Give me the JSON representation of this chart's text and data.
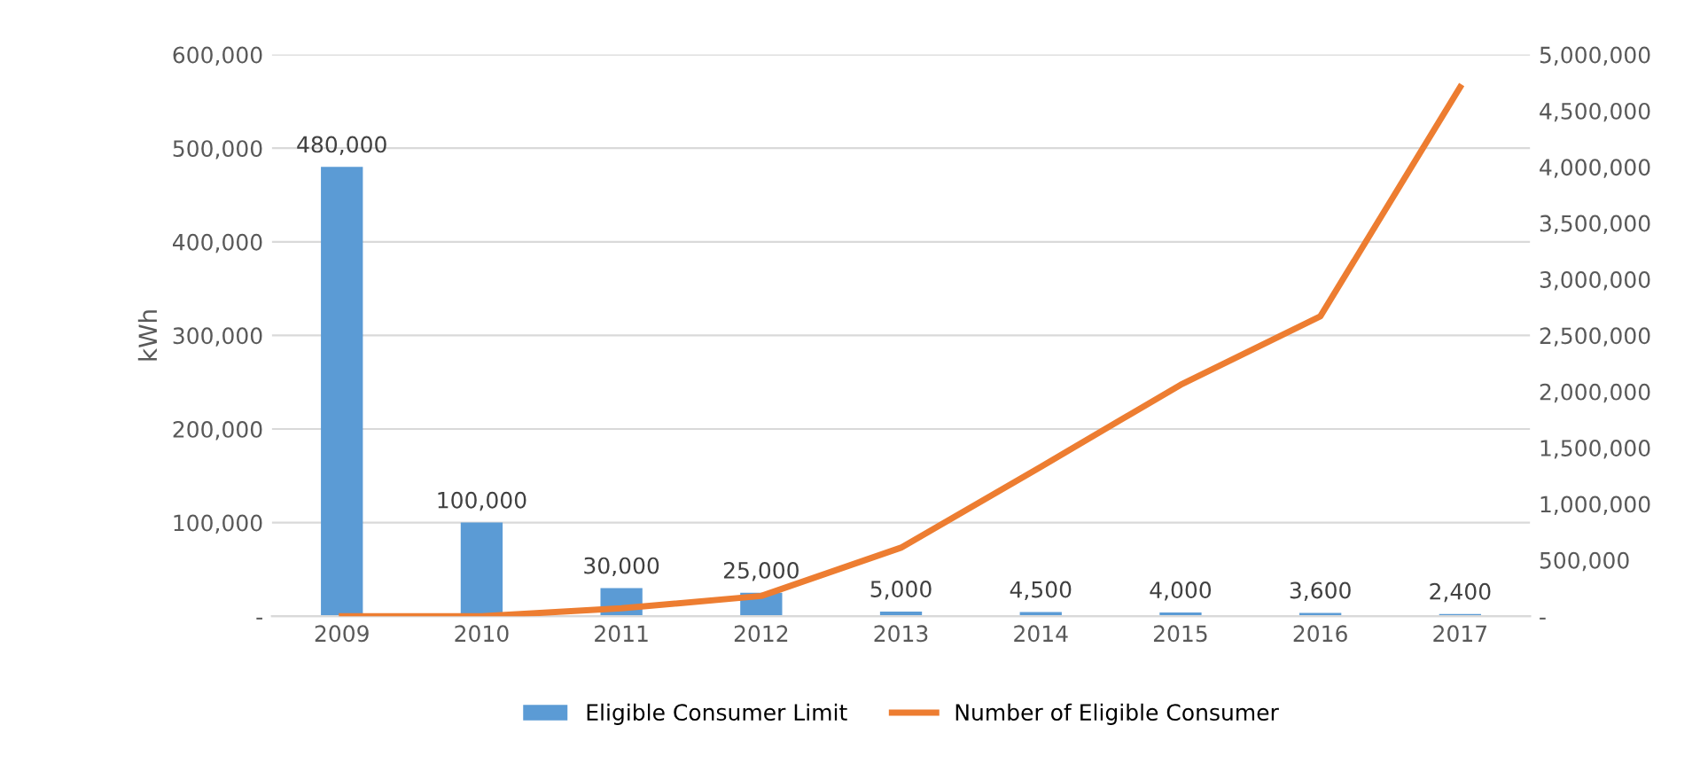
{
  "chart_data": {
    "type": "bar",
    "categories": [
      "2009",
      "2010",
      "2011",
      "2012",
      "2013",
      "2014",
      "2015",
      "2016",
      "2017"
    ],
    "ylabel": "kWh",
    "ylim": [
      0,
      600000
    ],
    "yticks": [
      {
        "value": 0,
        "label": "-"
      },
      {
        "value": 100000,
        "label": "100,000"
      },
      {
        "value": 200000,
        "label": "200,000"
      },
      {
        "value": 300000,
        "label": "300,000"
      },
      {
        "value": 400000,
        "label": "400,000"
      },
      {
        "value": 500000,
        "label": "500,000"
      },
      {
        "value": 600000,
        "label": "600,000"
      }
    ],
    "y2lim": [
      0,
      5000000
    ],
    "y2ticks": [
      {
        "value": 0,
        "label": "-"
      },
      {
        "value": 500000,
        "label": "500,000"
      },
      {
        "value": 1000000,
        "label": "1,000,000"
      },
      {
        "value": 1500000,
        "label": "1,500,000"
      },
      {
        "value": 2000000,
        "label": "2,000,000"
      },
      {
        "value": 2500000,
        "label": "2,500,000"
      },
      {
        "value": 3000000,
        "label": "3,000,000"
      },
      {
        "value": 3500000,
        "label": "3,500,000"
      },
      {
        "value": 4000000,
        "label": "4,000,000"
      },
      {
        "value": 4500000,
        "label": "4,500,000"
      },
      {
        "value": 5000000,
        "label": "5,000,000"
      }
    ],
    "grid": "y",
    "legend": "bottom",
    "series": [
      {
        "name": "Eligible Consumer Limit",
        "color": "#5b9bd5",
        "values": [
          480000,
          100000,
          30000,
          25000,
          5000,
          4500,
          4000,
          3600,
          2400
        ],
        "value_labels": [
          "480,000",
          "100,000",
          "30,000",
          "25,000",
          "5,000",
          "4,500",
          "4,000",
          "3,600",
          "2,400"
        ]
      },
      {
        "name": "Number of Eligible Consumer",
        "type": "line",
        "axis": "y2",
        "color": "#ed7d31",
        "values": [
          0,
          0,
          70000,
          180000,
          610000,
          1330000,
          2060000,
          2670000,
          4710000
        ]
      }
    ]
  }
}
